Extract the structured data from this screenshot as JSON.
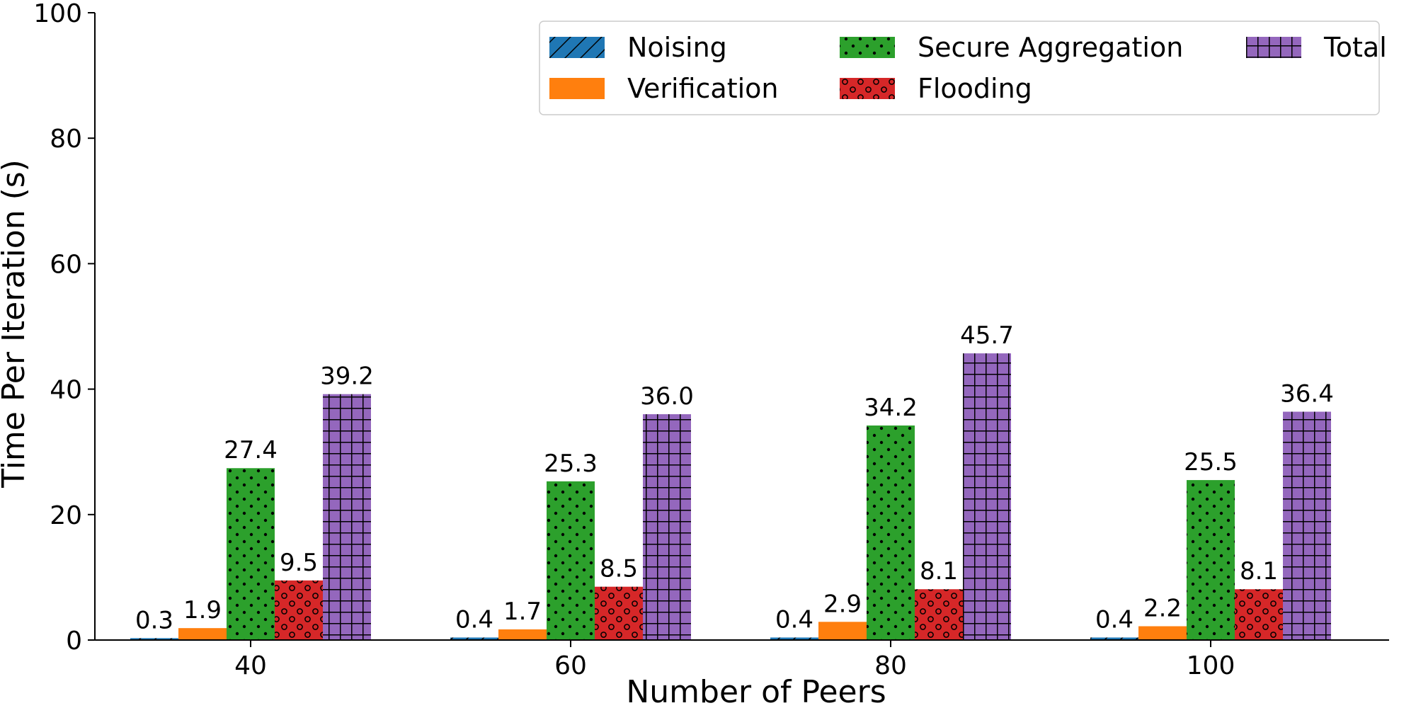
{
  "chart_data": {
    "type": "bar",
    "xlabel": "Number of Peers",
    "ylabel": "Time Per Iteration (s)",
    "categories": [
      "40",
      "60",
      "80",
      "100"
    ],
    "ylim": [
      0,
      100
    ],
    "yticks": [
      0,
      20,
      40,
      60,
      80,
      100
    ],
    "grid": false,
    "legend_position": "top-right",
    "series": [
      {
        "name": "Noising",
        "values": [
          0.3,
          0.4,
          0.4,
          0.4
        ],
        "labels": [
          "0.3",
          "0.4",
          "0.4",
          "0.4"
        ],
        "color": "#1f77b4",
        "pattern": "diagonal-hatch"
      },
      {
        "name": "Verification",
        "values": [
          1.9,
          1.7,
          2.9,
          2.2
        ],
        "labels": [
          "1.9",
          "1.7",
          "2.9",
          "2.2"
        ],
        "color": "#ff7f0e",
        "pattern": "none"
      },
      {
        "name": "Secure Aggregation",
        "values": [
          27.4,
          25.3,
          34.2,
          25.5
        ],
        "labels": [
          "27.4",
          "25.3",
          "34.2",
          "25.5"
        ],
        "color": "#2ca02c",
        "pattern": "dots"
      },
      {
        "name": "Flooding",
        "values": [
          9.5,
          8.5,
          8.1,
          8.1
        ],
        "labels": [
          "9.5",
          "8.5",
          "8.1",
          "8.1"
        ],
        "color": "#d62728",
        "pattern": "circles"
      },
      {
        "name": "Total",
        "values": [
          39.2,
          36.0,
          45.7,
          36.4
        ],
        "labels": [
          "39.2",
          "36.0",
          "45.7",
          "36.4"
        ],
        "color": "#9467bd",
        "pattern": "grid"
      }
    ]
  }
}
